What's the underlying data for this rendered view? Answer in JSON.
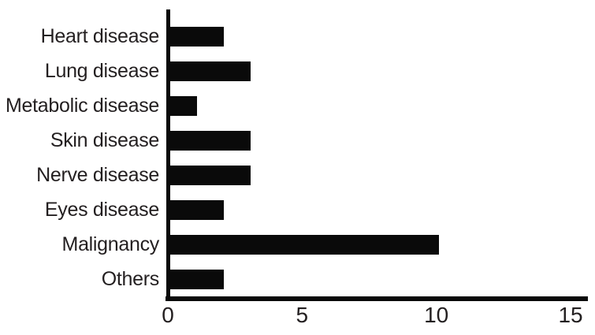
{
  "chart_data": {
    "type": "bar",
    "orientation": "horizontal",
    "title": "",
    "xlabel": "",
    "ylabel": "",
    "categories": [
      "Heart disease",
      "Lung disease",
      "Metabolic disease",
      "Skin disease",
      "Nerve disease",
      "Eyes disease",
      "Malignancy",
      "Others"
    ],
    "values": [
      2,
      3,
      1,
      3,
      3,
      2,
      10,
      2
    ],
    "xlim": [
      0,
      15
    ],
    "xticks": [
      0,
      5,
      10,
      15
    ],
    "grid": false,
    "legend": false,
    "bar_color": "#0a0a0a",
    "axis_color": "#0a0a0a",
    "label_color": "#231f20",
    "background_color": "#ffffff"
  }
}
